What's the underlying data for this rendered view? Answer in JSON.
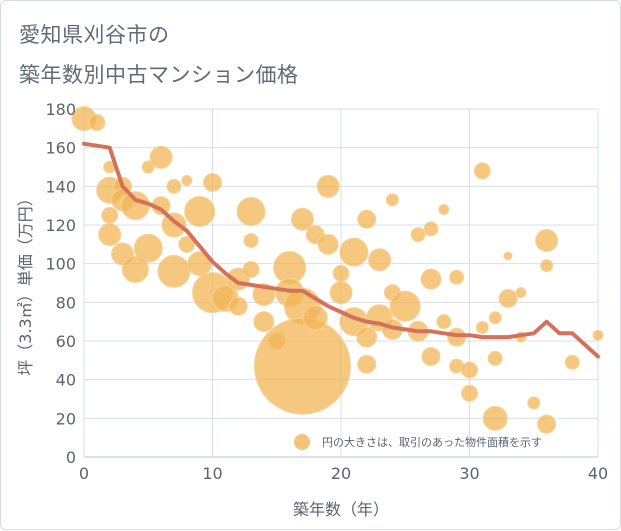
{
  "title_line1": "愛知県刈谷市の",
  "title_line2": "築年数別中古マンション価格",
  "colors": {
    "bubble": "#f1b454",
    "bubble_stroke": "#f6d39a",
    "line": "#d4715a",
    "grid": "#d3e0ec",
    "axis_text": "#5a6570"
  },
  "chart_data": {
    "type": "scatter",
    "xlabel": "築年数（年）",
    "ylabel": "坪（3.3㎡）単価（万円）",
    "xlim": [
      0,
      40
    ],
    "ylim": [
      0,
      180
    ],
    "x_ticks": [
      "0",
      "10",
      "20",
      "30",
      "40"
    ],
    "y_ticks": [
      "0",
      "20",
      "40",
      "60",
      "80",
      "100",
      "120",
      "140",
      "160",
      "180"
    ],
    "grid": true,
    "legend_text": "円の大きさは、取引のあった物件面積を示す",
    "legend_position": "bottom-right",
    "bubbles": [
      {
        "x": 0,
        "y": 175,
        "r": 12
      },
      {
        "x": 1,
        "y": 173,
        "r": 8
      },
      {
        "x": 2,
        "y": 150,
        "r": 6
      },
      {
        "x": 2,
        "y": 138,
        "r": 13
      },
      {
        "x": 3,
        "y": 140,
        "r": 9
      },
      {
        "x": 3,
        "y": 133,
        "r": 11
      },
      {
        "x": 2,
        "y": 125,
        "r": 8
      },
      {
        "x": 2,
        "y": 115,
        "r": 11
      },
      {
        "x": 4,
        "y": 130,
        "r": 14
      },
      {
        "x": 5,
        "y": 150,
        "r": 6
      },
      {
        "x": 6,
        "y": 155,
        "r": 11
      },
      {
        "x": 7,
        "y": 140,
        "r": 7
      },
      {
        "x": 8,
        "y": 143,
        "r": 5
      },
      {
        "x": 6,
        "y": 130,
        "r": 9
      },
      {
        "x": 7,
        "y": 120,
        "r": 12
      },
      {
        "x": 5,
        "y": 108,
        "r": 14
      },
      {
        "x": 3,
        "y": 105,
        "r": 11
      },
      {
        "x": 4,
        "y": 97,
        "r": 13
      },
      {
        "x": 7,
        "y": 96,
        "r": 16
      },
      {
        "x": 9,
        "y": 127,
        "r": 15
      },
      {
        "x": 10,
        "y": 142,
        "r": 9
      },
      {
        "x": 8,
        "y": 110,
        "r": 8
      },
      {
        "x": 9,
        "y": 100,
        "r": 12
      },
      {
        "x": 10,
        "y": 85,
        "r": 20
      },
      {
        "x": 11,
        "y": 82,
        "r": 13
      },
      {
        "x": 12,
        "y": 92,
        "r": 11
      },
      {
        "x": 12,
        "y": 78,
        "r": 9
      },
      {
        "x": 13,
        "y": 127,
        "r": 14
      },
      {
        "x": 13,
        "y": 112,
        "r": 7
      },
      {
        "x": 13,
        "y": 97,
        "r": 8
      },
      {
        "x": 14,
        "y": 84,
        "r": 11
      },
      {
        "x": 14,
        "y": 70,
        "r": 10
      },
      {
        "x": 15,
        "y": 60,
        "r": 8
      },
      {
        "x": 16,
        "y": 98,
        "r": 16
      },
      {
        "x": 16,
        "y": 85,
        "r": 14
      },
      {
        "x": 17,
        "y": 78,
        "r": 18
      },
      {
        "x": 17,
        "y": 123,
        "r": 11
      },
      {
        "x": 18,
        "y": 115,
        "r": 9
      },
      {
        "x": 17,
        "y": 47,
        "r": 48
      },
      {
        "x": 18,
        "y": 72,
        "r": 12
      },
      {
        "x": 19,
        "y": 140,
        "r": 11
      },
      {
        "x": 19,
        "y": 110,
        "r": 10
      },
      {
        "x": 20,
        "y": 95,
        "r": 8
      },
      {
        "x": 20,
        "y": 85,
        "r": 11
      },
      {
        "x": 21,
        "y": 106,
        "r": 14
      },
      {
        "x": 21,
        "y": 70,
        "r": 14
      },
      {
        "x": 22,
        "y": 123,
        "r": 9
      },
      {
        "x": 22,
        "y": 62,
        "r": 10
      },
      {
        "x": 22,
        "y": 48,
        "r": 9
      },
      {
        "x": 23,
        "y": 102,
        "r": 11
      },
      {
        "x": 23,
        "y": 72,
        "r": 13
      },
      {
        "x": 24,
        "y": 133,
        "r": 6
      },
      {
        "x": 24,
        "y": 85,
        "r": 8
      },
      {
        "x": 24,
        "y": 66,
        "r": 10
      },
      {
        "x": 25,
        "y": 78,
        "r": 15
      },
      {
        "x": 26,
        "y": 115,
        "r": 7
      },
      {
        "x": 26,
        "y": 65,
        "r": 10
      },
      {
        "x": 27,
        "y": 118,
        "r": 7
      },
      {
        "x": 27,
        "y": 92,
        "r": 10
      },
      {
        "x": 27,
        "y": 52,
        "r": 9
      },
      {
        "x": 28,
        "y": 128,
        "r": 5
      },
      {
        "x": 28,
        "y": 70,
        "r": 7
      },
      {
        "x": 29,
        "y": 93,
        "r": 7
      },
      {
        "x": 29,
        "y": 62,
        "r": 9
      },
      {
        "x": 29,
        "y": 47,
        "r": 7
      },
      {
        "x": 30,
        "y": 45,
        "r": 8
      },
      {
        "x": 30,
        "y": 33,
        "r": 8
      },
      {
        "x": 31,
        "y": 148,
        "r": 8
      },
      {
        "x": 31,
        "y": 67,
        "r": 6
      },
      {
        "x": 32,
        "y": 72,
        "r": 6
      },
      {
        "x": 32,
        "y": 51,
        "r": 7
      },
      {
        "x": 32,
        "y": 20,
        "r": 12
      },
      {
        "x": 33,
        "y": 82,
        "r": 9
      },
      {
        "x": 33,
        "y": 104,
        "r": 4
      },
      {
        "x": 34,
        "y": 85,
        "r": 5
      },
      {
        "x": 34,
        "y": 62,
        "r": 5
      },
      {
        "x": 35,
        "y": 28,
        "r": 6
      },
      {
        "x": 36,
        "y": 112,
        "r": 11
      },
      {
        "x": 36,
        "y": 99,
        "r": 6
      },
      {
        "x": 36,
        "y": 17,
        "r": 9
      },
      {
        "x": 38,
        "y": 49,
        "r": 7
      },
      {
        "x": 40,
        "y": 63,
        "r": 5
      }
    ],
    "series": [
      {
        "type": "line",
        "x": [
          0,
          1,
          2,
          3,
          4,
          5,
          6,
          7,
          8,
          9,
          10,
          11,
          12,
          13,
          14,
          15,
          16,
          17,
          18,
          19,
          20,
          21,
          22,
          23,
          24,
          25,
          26,
          27,
          28,
          29,
          30,
          31,
          32,
          33,
          34,
          35,
          36,
          37,
          38,
          39,
          40
        ],
        "values": [
          162,
          161,
          160,
          140,
          133,
          131,
          128,
          122,
          117,
          109,
          101,
          95,
          90,
          89,
          88,
          87,
          86,
          86,
          82,
          78,
          75,
          72,
          70,
          69,
          67,
          66,
          65,
          65,
          64,
          63,
          63,
          62,
          62,
          62,
          63,
          64,
          70,
          64,
          64,
          58,
          52
        ]
      }
    ]
  }
}
